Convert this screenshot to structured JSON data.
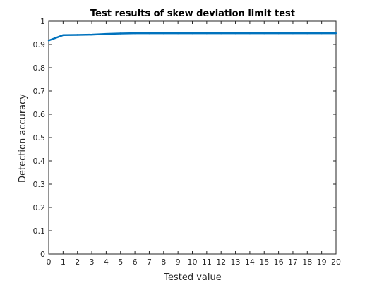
{
  "chart_data": {
    "type": "line",
    "title": "Test results of skew deviation limit test",
    "xlabel": "Tested value",
    "ylabel": "Detection accuracy",
    "xlim": [
      0,
      20
    ],
    "ylim": [
      0,
      1
    ],
    "xticks": [
      0,
      1,
      2,
      3,
      4,
      5,
      6,
      7,
      8,
      9,
      10,
      11,
      12,
      13,
      14,
      15,
      16,
      17,
      18,
      19,
      20
    ],
    "yticks": [
      0,
      0.1,
      0.2,
      0.3,
      0.4,
      0.5,
      0.6,
      0.7,
      0.8,
      0.9,
      1
    ],
    "ytick_labels": [
      "0",
      "0.1",
      "0.2",
      "0.3",
      "0.4",
      "0.5",
      "0.6",
      "0.7",
      "0.8",
      "0.9",
      "1"
    ],
    "grid": false,
    "legend": "none",
    "series": [
      {
        "color": "#0072BD",
        "x": [
          0,
          1,
          2,
          3,
          4,
          5,
          6,
          7,
          8,
          9,
          10,
          11,
          12,
          13,
          14,
          15,
          16,
          17,
          18,
          19,
          20
        ],
        "y": [
          0.917,
          0.94,
          0.941,
          0.942,
          0.945,
          0.947,
          0.948,
          0.948,
          0.948,
          0.948,
          0.948,
          0.948,
          0.948,
          0.948,
          0.948,
          0.948,
          0.948,
          0.948,
          0.948,
          0.948,
          0.948
        ]
      }
    ]
  }
}
